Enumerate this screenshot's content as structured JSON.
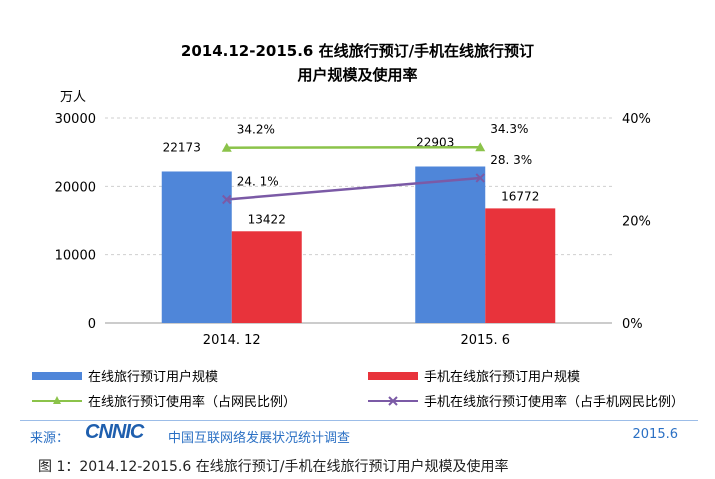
{
  "chart_data": {
    "type": "bar",
    "title": "2014.12-2015.6 在线旅行预订/手机在线旅行预订",
    "subtitle": "用户规模及使用率",
    "y_unit": "万人",
    "categories": [
      "2014. 12",
      "2015. 6"
    ],
    "ylim": [
      0,
      30000
    ],
    "yticks": [
      "0",
      "10000",
      "20000",
      "30000"
    ],
    "y2lim": [
      0,
      40
    ],
    "y2ticks": [
      "0%",
      "20%",
      "40%"
    ],
    "grid": true,
    "series": [
      {
        "name": "在线旅行预订用户规模",
        "kind": "bar",
        "axis": "left",
        "values": [
          22173,
          22903
        ],
        "labels": [
          "22173",
          "22903"
        ],
        "color": "#4f86d9"
      },
      {
        "name": "手机在线旅行预订用户规模",
        "kind": "bar",
        "axis": "left",
        "values": [
          13422,
          16772
        ],
        "labels": [
          "13422",
          "16772"
        ],
        "color": "#e8333b"
      },
      {
        "name": "在线旅行预订使用率（占网民比例）",
        "kind": "line",
        "axis": "right",
        "marker": "triangle",
        "values": [
          34.2,
          34.3
        ],
        "labels": [
          "34.2%",
          "34.3%"
        ],
        "color": "#8bc34a"
      },
      {
        "name": "手机在线旅行预订使用率（占手机网民比例）",
        "kind": "line",
        "axis": "right",
        "marker": "x",
        "values": [
          24.1,
          28.3
        ],
        "labels": [
          "24. 1%",
          "28. 3%"
        ],
        "color": "#7b5aa6"
      }
    ],
    "legend": "bottom"
  },
  "footer": {
    "source_label": "来源：",
    "logo_text": "CNNIC",
    "org_name": "中国互联网络发展状况统计调查",
    "date": "2015.6"
  },
  "caption": "图  1：2014.12-2015.6 在线旅行预订/手机在线旅行预订用户规模及使用率"
}
